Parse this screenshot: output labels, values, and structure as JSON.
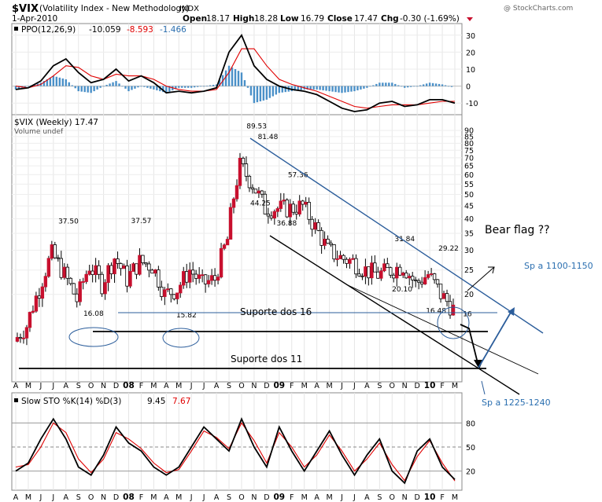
{
  "header": {
    "symbol": "$VIX",
    "name": "(Volatility Index - New Methodology)",
    "exchange": "INDX",
    "date": "1-Apr-2010",
    "open_label": "Open",
    "open": "18.17",
    "high_label": "High",
    "high": "18.28",
    "low_label": "Low",
    "low": "16.79",
    "close_label": "Close",
    "close": "17.47",
    "chg_label": "Chg",
    "chg": "-0.30 (-1.69%)",
    "watermark": "@ StockCharts.com"
  },
  "colors": {
    "up": "#ffffff",
    "down": "#c8102e",
    "ma": "#e00000",
    "hist": "#4a90c8",
    "channel": "#2b5d9b"
  },
  "x_axis": {
    "labels": [
      "A",
      "M",
      "J",
      "J",
      "A",
      "S",
      "O",
      "N",
      "D",
      "08",
      "F",
      "M",
      "A",
      "M",
      "J",
      "J",
      "A",
      "S",
      "O",
      "N",
      "D",
      "09",
      "F",
      "M",
      "A",
      "M",
      "J",
      "J",
      "A",
      "S",
      "O",
      "N",
      "D",
      "10",
      "F",
      "M"
    ],
    "bold_labels": [
      "08",
      "09",
      "10"
    ]
  },
  "chart_data": [
    {
      "type": "line",
      "panel": "ppo",
      "legend": "PPO(12,26,9)",
      "legend_values": [
        "-10.059",
        "-8.593",
        "-1.466"
      ],
      "ylim": [
        -15,
        35
      ],
      "y_ticks": [
        -10,
        0,
        10,
        20,
        30
      ],
      "x": [
        0,
        1,
        2,
        3,
        4,
        5,
        6,
        7,
        8,
        9,
        10,
        11,
        12,
        13,
        14,
        15,
        16,
        17,
        18,
        19,
        20,
        21,
        22,
        23,
        24,
        25,
        26,
        27,
        28,
        29,
        30,
        31,
        32,
        33,
        34,
        35
      ],
      "series": [
        {
          "name": "PPO",
          "values": [
            -2,
            -1,
            3,
            12,
            16,
            8,
            2,
            4,
            10,
            3,
            6,
            2,
            -4,
            -3,
            -4,
            -3,
            -1,
            20,
            30,
            12,
            4,
            0,
            -2,
            -3,
            -5,
            -9,
            -13,
            -15,
            -14,
            -10,
            -9,
            -12,
            -11,
            -8,
            -8,
            -10
          ]
        },
        {
          "name": "Signal",
          "values": [
            0,
            -1,
            1,
            6,
            12,
            11,
            6,
            4,
            7,
            6,
            6,
            4,
            0,
            -2,
            -3,
            -3,
            -2,
            8,
            22,
            22,
            12,
            4,
            1,
            -1,
            -3,
            -6,
            -9,
            -12,
            -13,
            -12,
            -11,
            -11,
            -11,
            -10,
            -9,
            -9
          ]
        },
        {
          "name": "Histogram",
          "values": [
            -2,
            0,
            2,
            6,
            4,
            -3,
            -4,
            0,
            3,
            -3,
            0,
            -2,
            -4,
            -1,
            -1,
            0,
            1,
            12,
            8,
            -10,
            -8,
            -4,
            -3,
            -2,
            -2,
            -3,
            -4,
            -3,
            -1,
            2,
            2,
            -1,
            0,
            2,
            1,
            -1
          ]
        }
      ]
    },
    {
      "type": "candlestick",
      "panel": "price",
      "legend": "$VIX (Weekly) 17.47",
      "volume_legend": "Volume undef",
      "ylim": [
        9.5,
        90
      ],
      "scale": "log",
      "y_ticks": [
        20,
        25,
        30,
        35,
        40,
        45,
        50,
        55,
        60,
        65,
        70,
        75,
        80,
        85,
        90
      ],
      "x": [
        0,
        1,
        2,
        3,
        4,
        5,
        6,
        7,
        8,
        9,
        10,
        11,
        12,
        13,
        14,
        15,
        16,
        17,
        18,
        19,
        20,
        21,
        22,
        23,
        24,
        25,
        26,
        27,
        28,
        29,
        30,
        31,
        32,
        33,
        34,
        35
      ],
      "close": [
        13,
        15,
        21,
        29,
        24,
        19,
        26,
        22,
        28,
        23,
        27,
        26,
        20,
        21,
        25,
        22,
        23,
        33,
        65,
        55,
        44,
        44,
        44,
        45,
        37,
        30,
        28,
        27,
        25,
        24,
        25,
        26,
        22,
        24,
        20,
        17.5
      ],
      "labels": [
        {
          "text": "37.50",
          "x": 4.2,
          "y": 37.5
        },
        {
          "text": "16.08",
          "x": 6.2,
          "y": 16.08
        },
        {
          "text": "37.57",
          "x": 10.0,
          "y": 37.57
        },
        {
          "text": "15.82",
          "x": 13.6,
          "y": 15.82
        },
        {
          "text": "89.53",
          "x": 19.2,
          "y": 89.53
        },
        {
          "text": "81.48",
          "x": 20.1,
          "y": 81.48
        },
        {
          "text": "44.25",
          "x": 19.5,
          "y": 44.25
        },
        {
          "text": "57.36",
          "x": 22.5,
          "y": 57.36
        },
        {
          "text": "36.88",
          "x": 21.6,
          "y": 36.88
        },
        {
          "text": "31.84",
          "x": 31.0,
          "y": 31.84
        },
        {
          "text": "20.10",
          "x": 30.8,
          "y": 20.1
        },
        {
          "text": "29.22",
          "x": 34.5,
          "y": 29.22
        },
        {
          "text": "16.48",
          "x": 33.5,
          "y": 16.48
        },
        {
          "text": "16",
          "x": 36.0,
          "y": 16
        }
      ],
      "annotations": {
        "support_16": "Suporte dos 16",
        "support_11": "Suporte dos 11",
        "bear_flag": "Bear flag ??",
        "target_up": "Sp a 1100-1150",
        "target_down": "Sp a 1225-1240"
      }
    },
    {
      "type": "line",
      "panel": "stochastic",
      "legend": "Slow STO %K(14) %D(3)",
      "legend_values": [
        "9.45",
        "7.67"
      ],
      "ylim": [
        0,
        100
      ],
      "y_ticks": [
        20,
        50,
        80
      ],
      "x": [
        0,
        1,
        2,
        3,
        4,
        5,
        6,
        7,
        8,
        9,
        10,
        11,
        12,
        13,
        14,
        15,
        16,
        17,
        18,
        19,
        20,
        21,
        22,
        23,
        24,
        25,
        26,
        27,
        28,
        29,
        30,
        31,
        32,
        33,
        34,
        35
      ],
      "series": [
        {
          "name": "%K",
          "values": [
            20,
            30,
            60,
            85,
            60,
            25,
            15,
            40,
            75,
            55,
            45,
            25,
            15,
            25,
            50,
            75,
            60,
            45,
            85,
            50,
            25,
            75,
            45,
            20,
            45,
            70,
            40,
            15,
            40,
            60,
            20,
            5,
            45,
            60,
            25,
            9.45
          ]
        },
        {
          "name": "%D",
          "values": [
            25,
            28,
            50,
            80,
            68,
            35,
            18,
            35,
            68,
            60,
            48,
            30,
            18,
            22,
            45,
            70,
            62,
            48,
            80,
            58,
            30,
            68,
            50,
            25,
            40,
            65,
            45,
            20,
            35,
            55,
            28,
            8,
            38,
            58,
            30,
            7.67
          ]
        }
      ]
    }
  ]
}
